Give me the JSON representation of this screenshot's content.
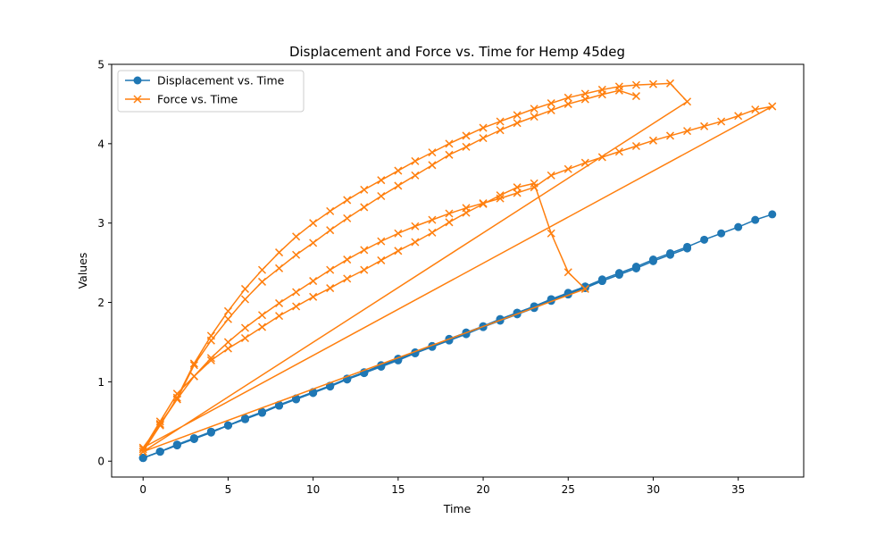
{
  "chart_data": {
    "type": "line",
    "title": "Displacement and Force vs. Time for Hemp 45deg",
    "xlabel": "Time",
    "ylabel": "Values",
    "xlim": [
      -1.85,
      38.85
    ],
    "ylim": [
      -0.2,
      5.0
    ],
    "xticks": [
      0,
      5,
      10,
      15,
      20,
      25,
      30,
      35
    ],
    "yticks": [
      0,
      1,
      2,
      3,
      4,
      5
    ],
    "legend_position": "upper-left",
    "grid": false,
    "series": [
      {
        "name": "Displacement vs. Time",
        "color": "#1f77b4",
        "marker": "circle",
        "runs": [
          {
            "x": [
              0,
              1,
              2,
              3,
              4,
              5,
              6,
              7,
              8,
              9,
              10,
              11,
              12,
              13,
              14,
              15,
              16,
              17,
              18,
              19,
              20,
              21,
              22,
              23,
              24,
              25,
              26,
              27,
              28,
              29,
              30,
              31,
              32,
              33,
              34,
              35,
              36,
              37
            ],
            "y": [
              0.04,
              0.12,
              0.21,
              0.29,
              0.37,
              0.45,
              0.54,
              0.62,
              0.71,
              0.79,
              0.87,
              0.95,
              1.04,
              1.12,
              1.21,
              1.29,
              1.37,
              1.45,
              1.54,
              1.62,
              1.7,
              1.79,
              1.87,
              1.95,
              2.04,
              2.12,
              2.2,
              2.29,
              2.37,
              2.45,
              2.54,
              2.62,
              2.7,
              2.79,
              2.87,
              2.95,
              3.04,
              3.11
            ]
          },
          {
            "x": [
              0,
              1,
              2,
              3,
              4,
              5,
              6,
              7,
              8,
              9,
              10,
              11,
              12,
              13,
              14,
              15,
              16,
              17,
              18,
              19,
              20,
              21,
              22,
              23,
              24,
              25,
              26
            ],
            "y": [
              0.04,
              0.12,
              0.2,
              0.28,
              0.37,
              0.45,
              0.53,
              0.62,
              0.7,
              0.79,
              0.87,
              0.95,
              1.04,
              1.12,
              1.2,
              1.29,
              1.37,
              1.45,
              1.54,
              1.62,
              1.7,
              1.79,
              1.87,
              1.95,
              2.04,
              2.12,
              2.2
            ]
          },
          {
            "x": [
              0,
              1,
              2,
              3,
              4,
              5,
              6,
              7,
              8,
              9,
              10,
              11,
              12,
              13,
              14,
              15,
              16,
              17,
              18,
              19,
              20,
              21,
              22,
              23,
              24,
              25,
              26,
              27,
              28,
              29,
              30,
              31,
              32
            ],
            "y": [
              0.04,
              0.12,
              0.2,
              0.28,
              0.37,
              0.45,
              0.53,
              0.61,
              0.7,
              0.78,
              0.86,
              0.95,
              1.03,
              1.11,
              1.2,
              1.28,
              1.36,
              1.45,
              1.53,
              1.61,
              1.69,
              1.78,
              1.86,
              1.94,
              2.03,
              2.11,
              2.19,
              2.27,
              2.35,
              2.43,
              2.52,
              2.6,
              2.68
            ]
          },
          {
            "x": [
              0,
              1,
              2,
              3,
              4,
              5,
              6,
              7,
              8,
              9,
              10,
              11,
              12,
              13,
              14,
              15,
              16,
              17,
              18,
              19,
              20,
              21,
              22,
              23,
              24,
              25,
              26,
              27,
              28,
              29
            ],
            "y": [
              0.04,
              0.12,
              0.2,
              0.28,
              0.36,
              0.45,
              0.53,
              0.61,
              0.7,
              0.78,
              0.86,
              0.94,
              1.03,
              1.11,
              1.19,
              1.27,
              1.36,
              1.44,
              1.52,
              1.6,
              1.69,
              1.77,
              1.85,
              1.93,
              2.02,
              2.1,
              2.18,
              2.27,
              2.35,
              2.43
            ]
          }
        ]
      },
      {
        "name": "Force vs. Time",
        "color": "#ff7f0e",
        "marker": "x",
        "x": [
          0,
          1,
          2,
          3,
          4,
          5,
          6,
          7,
          8,
          9,
          10,
          11,
          12,
          13,
          14,
          15,
          16,
          17,
          18,
          19,
          20,
          21,
          22,
          23,
          24,
          25,
          26,
          27,
          28,
          29,
          30,
          31,
          32,
          33,
          34,
          35,
          36,
          37,
          0,
          1,
          2,
          3,
          4,
          5,
          6,
          7,
          8,
          9,
          10,
          11,
          12,
          13,
          14,
          15,
          16,
          17,
          18,
          19,
          20,
          21,
          22,
          23,
          24,
          25,
          26,
          0,
          1,
          2,
          3,
          4,
          5,
          6,
          7,
          8,
          9,
          10,
          11,
          12,
          13,
          14,
          15,
          16,
          17,
          18,
          19,
          20,
          21,
          22,
          23,
          24,
          25,
          26,
          27,
          28,
          29,
          30,
          31,
          32,
          0,
          1,
          2,
          3,
          4,
          5,
          6,
          7,
          8,
          9,
          10,
          11,
          12,
          13,
          14,
          15,
          16,
          17,
          18,
          19,
          20,
          21,
          22,
          23,
          24,
          25,
          26,
          27,
          28,
          29
        ],
        "y": [
          0.15,
          0.5,
          0.85,
          1.07,
          1.3,
          1.5,
          1.68,
          1.84,
          1.99,
          2.13,
          2.27,
          2.41,
          2.54,
          2.66,
          2.77,
          2.87,
          2.96,
          3.04,
          3.12,
          3.19,
          3.25,
          3.31,
          3.38,
          3.45,
          3.6,
          3.68,
          3.76,
          3.83,
          3.9,
          3.97,
          4.04,
          4.1,
          4.16,
          4.22,
          4.28,
          4.35,
          4.43,
          4.47,
          0.17,
          0.46,
          0.78,
          1.07,
          1.27,
          1.42,
          1.55,
          1.69,
          1.83,
          1.95,
          2.07,
          2.18,
          2.3,
          2.41,
          2.53,
          2.65,
          2.76,
          2.88,
          3.01,
          3.13,
          3.24,
          3.35,
          3.45,
          3.5,
          2.87,
          2.38,
          2.17,
          0.12,
          0.45,
          0.8,
          1.23,
          1.58,
          1.89,
          2.17,
          2.41,
          2.63,
          2.83,
          3.0,
          3.15,
          3.29,
          3.42,
          3.54,
          3.66,
          3.78,
          3.89,
          4.0,
          4.1,
          4.2,
          4.28,
          4.36,
          4.44,
          4.51,
          4.58,
          4.63,
          4.68,
          4.72,
          4.74,
          4.75,
          4.76,
          4.53,
          0.12,
          0.47,
          0.78,
          1.21,
          1.52,
          1.79,
          2.04,
          2.26,
          2.43,
          2.6,
          2.75,
          2.91,
          3.06,
          3.2,
          3.34,
          3.47,
          3.6,
          3.73,
          3.86,
          3.96,
          4.07,
          4.17,
          4.26,
          4.34,
          4.42,
          4.5,
          4.56,
          4.62,
          4.67,
          4.6
        ]
      }
    ]
  }
}
